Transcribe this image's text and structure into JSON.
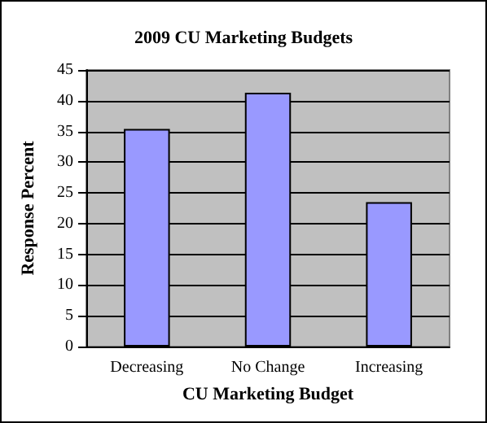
{
  "chart_data": {
    "type": "bar",
    "title": "2009 CU Marketing Budgets",
    "xlabel": "CU Marketing Budget",
    "ylabel": "Response Percent",
    "categories": [
      "Decreasing",
      "No Change",
      "Increasing"
    ],
    "values": [
      35.4,
      41.3,
      23.5
    ],
    "color": "#9999ff",
    "ylim": [
      0,
      45
    ],
    "yticks": [
      0,
      5,
      10,
      15,
      20,
      25,
      30,
      35,
      40,
      45
    ],
    "grid": "y"
  }
}
